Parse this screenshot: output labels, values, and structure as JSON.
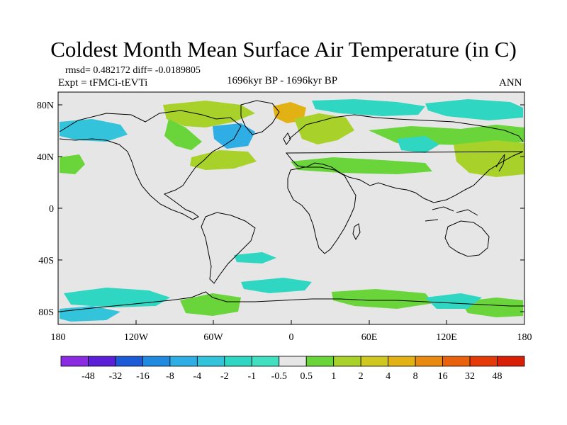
{
  "title": "Coldest Month Mean Surface Air Temperature (in C)",
  "stats_line": "rmsd= 0.482172 diff= -0.0189805",
  "experiment_line": "Expt = tFMCi-tEVTi",
  "period_label": "1696kyr BP - 1696kyr BP",
  "season_label": "ANN",
  "y_ticks": [
    "80N",
    "40N",
    "0",
    "40S",
    "80S"
  ],
  "x_ticks": [
    "180",
    "120W",
    "60W",
    "0",
    "60E",
    "120E",
    "180"
  ],
  "colorbar": {
    "labels": [
      "-48",
      "-32",
      "-16",
      "-8",
      "-4",
      "-2",
      "-1",
      "-0.5",
      "0.5",
      "1",
      "2",
      "4",
      "8",
      "16",
      "32",
      "48"
    ],
    "colors": [
      "#8a2be2",
      "#5a1fd6",
      "#1c5ad8",
      "#1f8ae0",
      "#2eaee4",
      "#33c3da",
      "#2fd6c2",
      "#40e0c0",
      "#e6e6e6",
      "#6ad53a",
      "#a8d22a",
      "#cfc820",
      "#e2b214",
      "#e88a10",
      "#e8620e",
      "#e43a08",
      "#d81e05"
    ]
  },
  "map": {
    "background_color": "#e6e6e6",
    "lon_range": [
      -180,
      180
    ],
    "lat_range": [
      -90,
      90
    ]
  }
}
